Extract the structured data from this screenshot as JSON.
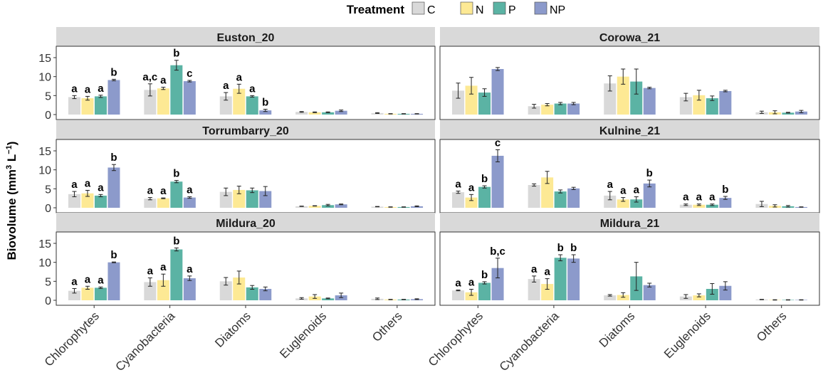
{
  "chart_data": {
    "type": "bar",
    "subtype": "faceted-grouped-bar-with-error-bars",
    "ylabel_parts": {
      "main": "Biovolume (mm",
      "sup1": "3",
      "mid": " L",
      "sup2": "−1",
      "end": ")"
    },
    "ylim": [
      0,
      18
    ],
    "yticks": [
      0,
      5,
      10,
      15
    ],
    "categories": [
      "Chlorophytes",
      "Cyanobacteria",
      "Diatoms",
      "Euglenoids",
      "Others"
    ],
    "legend": {
      "title": "Treatment",
      "position": "top",
      "items": [
        {
          "label": "C",
          "color": "#d9d9d9"
        },
        {
          "label": "N",
          "color": "#fde994"
        },
        {
          "label": "P",
          "color": "#5bb3a4"
        },
        {
          "label": "NP",
          "color": "#8c9acb"
        }
      ]
    },
    "panels": [
      {
        "title": "Euston_20",
        "values": [
          [
            4.6,
            4.3,
            4.8,
            9.1
          ],
          [
            6.5,
            6.9,
            13.0,
            8.8
          ],
          [
            4.8,
            6.8,
            4.8,
            1.1
          ],
          [
            0.7,
            0.6,
            0.6,
            1.0
          ],
          [
            0.4,
            0.2,
            0.2,
            0.2
          ]
        ],
        "errors": [
          [
            0.4,
            0.5,
            0.3,
            0.2
          ],
          [
            1.6,
            0.3,
            1.3,
            0.2
          ],
          [
            1.0,
            1.2,
            0.2,
            0.3
          ],
          [
            0.1,
            0.1,
            0.1,
            0.2
          ],
          [
            0.1,
            0.05,
            0.05,
            0.05
          ]
        ],
        "letters": [
          [
            "a",
            "a",
            "a",
            "b"
          ],
          [
            "a,c",
            "a",
            "b",
            "c"
          ],
          [
            "a",
            "a",
            "a",
            "b"
          ],
          [
            "",
            "",
            "",
            ""
          ],
          [
            "",
            "",
            "",
            ""
          ]
        ]
      },
      {
        "title": "Corowa_21",
        "values": [
          [
            6.3,
            7.6,
            5.8,
            12.0
          ],
          [
            2.2,
            2.6,
            2.9,
            2.9
          ],
          [
            8.2,
            10.0,
            8.7,
            7.0
          ],
          [
            4.6,
            5.1,
            4.3,
            6.2
          ],
          [
            0.6,
            0.6,
            0.5,
            0.8
          ]
        ],
        "errors": [
          [
            2.0,
            2.2,
            1.0,
            0.4
          ],
          [
            0.5,
            0.3,
            0.3,
            0.3
          ],
          [
            2.0,
            2.0,
            3.3,
            0.2
          ],
          [
            1.0,
            1.3,
            0.6,
            0.2
          ],
          [
            0.3,
            0.4,
            0.1,
            0.3
          ]
        ],
        "letters": [
          [
            "",
            "",
            "",
            ""
          ],
          [
            "",
            "",
            "",
            ""
          ],
          [
            "",
            "",
            "",
            ""
          ],
          [
            "",
            "",
            "",
            ""
          ],
          [
            "",
            "",
            "",
            ""
          ]
        ]
      },
      {
        "title": "Torrumbarry_20",
        "values": [
          [
            3.6,
            3.8,
            3.2,
            10.6
          ],
          [
            2.4,
            2.5,
            6.9,
            2.7
          ],
          [
            4.2,
            4.7,
            4.6,
            4.4
          ],
          [
            0.4,
            0.5,
            0.7,
            0.9
          ],
          [
            0.3,
            0.2,
            0.2,
            0.4
          ]
        ],
        "errors": [
          [
            0.7,
            0.8,
            0.3,
            0.8
          ],
          [
            0.3,
            0.1,
            0.3,
            0.2
          ],
          [
            1.0,
            1.0,
            0.6,
            1.2
          ],
          [
            0.05,
            0.05,
            0.2,
            0.1
          ],
          [
            0.05,
            0.05,
            0.05,
            0.1
          ]
        ],
        "letters": [
          [
            "a",
            "a",
            "a",
            "b"
          ],
          [
            "a",
            "a",
            "b",
            "a"
          ],
          [
            "",
            "",
            "",
            ""
          ],
          [
            "",
            "",
            "",
            ""
          ],
          [
            "",
            "",
            "",
            ""
          ]
        ]
      },
      {
        "title": "Kulnine_21",
        "values": [
          [
            4.1,
            2.7,
            5.5,
            13.7
          ],
          [
            6.0,
            8.0,
            4.3,
            5.1
          ],
          [
            3.2,
            2.2,
            2.2,
            6.4
          ],
          [
            0.8,
            0.8,
            0.8,
            2.6
          ],
          [
            1.0,
            0.5,
            0.4,
            0.2
          ]
        ],
        "errors": [
          [
            0.3,
            0.8,
            0.3,
            1.6
          ],
          [
            0.3,
            1.6,
            0.4,
            0.3
          ],
          [
            1.1,
            0.5,
            0.7,
            0.9
          ],
          [
            0.2,
            0.2,
            0.2,
            0.4
          ],
          [
            0.7,
            0.3,
            0.2,
            0.05
          ]
        ],
        "letters": [
          [
            "a",
            "a",
            "b",
            "c"
          ],
          [
            "",
            "",
            "",
            ""
          ],
          [
            "a",
            "a",
            "a",
            "b"
          ],
          [
            "a",
            "a",
            "a",
            "b"
          ],
          [
            "",
            "",
            "",
            ""
          ]
        ]
      },
      {
        "title": "Mildura_20",
        "values": [
          [
            2.5,
            3.3,
            3.3,
            10.0
          ],
          [
            4.8,
            5.3,
            13.4,
            5.8
          ],
          [
            5.0,
            6.0,
            3.4,
            3.0
          ],
          [
            0.5,
            1.0,
            0.5,
            1.3
          ],
          [
            0.4,
            0.2,
            0.2,
            0.3
          ]
        ],
        "errors": [
          [
            0.6,
            0.4,
            0.2,
            0.1
          ],
          [
            1.1,
            1.6,
            0.4,
            0.6
          ],
          [
            1.0,
            1.7,
            0.5,
            0.5
          ],
          [
            0.2,
            0.5,
            0.1,
            0.6
          ],
          [
            0.2,
            0.05,
            0.05,
            0.1
          ]
        ],
        "letters": [
          [
            "a",
            "a",
            "a",
            "b"
          ],
          [
            "a",
            "a",
            "b",
            "a"
          ],
          [
            "",
            "",
            "",
            ""
          ],
          [
            "",
            "",
            "",
            ""
          ],
          [
            "",
            "",
            "",
            ""
          ]
        ]
      },
      {
        "title": "Mildura_21",
        "values": [
          [
            2.6,
            2.1,
            4.6,
            8.5
          ],
          [
            5.6,
            4.3,
            11.2,
            11.0
          ],
          [
            1.3,
            1.4,
            6.3,
            4.0
          ],
          [
            1.0,
            1.3,
            3.0,
            3.8
          ],
          [
            0.2,
            0.1,
            0.1,
            0.1
          ]
        ],
        "errors": [
          [
            0.1,
            0.8,
            0.3,
            2.6
          ],
          [
            0.8,
            1.4,
            0.8,
            1.0
          ],
          [
            0.2,
            0.6,
            3.7,
            0.5
          ],
          [
            0.5,
            0.4,
            1.4,
            1.1
          ],
          [
            0.05,
            0.05,
            0.05,
            0.05
          ]
        ],
        "letters": [
          [
            "a",
            "a",
            "b",
            "b,c"
          ],
          [
            "a",
            "a",
            "b",
            "b"
          ],
          [
            "",
            "",
            "",
            ""
          ],
          [
            "",
            "",
            "",
            ""
          ],
          [
            "",
            "",
            "",
            ""
          ]
        ]
      }
    ]
  }
}
